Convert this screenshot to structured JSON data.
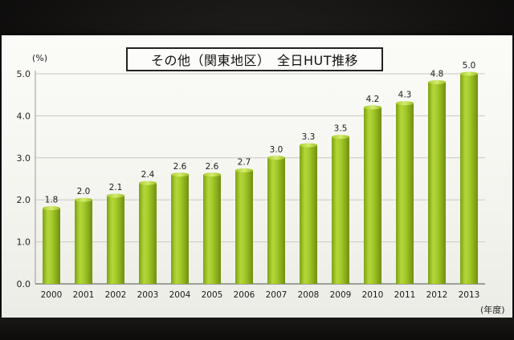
{
  "chart_data": {
    "type": "bar",
    "title": "その他（関東地区）　全日HUT推移",
    "ylabel": "(%)",
    "xlabel": "(年度)",
    "ylim": [
      0,
      5.0
    ],
    "yticks": [
      "0.0",
      "1.0",
      "2.0",
      "3.0",
      "4.0",
      "5.0"
    ],
    "grid": true,
    "categories": [
      "2000",
      "2001",
      "2002",
      "2003",
      "2004",
      "2005",
      "2006",
      "2007",
      "2008",
      "2009",
      "2010",
      "2011",
      "2012",
      "2013"
    ],
    "values": [
      1.8,
      2.0,
      2.1,
      2.4,
      2.6,
      2.6,
      2.7,
      3.0,
      3.3,
      3.5,
      4.2,
      4.3,
      4.8,
      5.0
    ],
    "value_labels": [
      "1.8",
      "2.0",
      "2.1",
      "2.4",
      "2.6",
      "2.6",
      "2.7",
      "3.0",
      "3.3",
      "3.5",
      "4.2",
      "4.3",
      "4.8",
      "5.0"
    ],
    "bar_color": "#9bc21e",
    "bar_highlight": "#c2e04a",
    "bar_shadow": "#6f9010"
  }
}
